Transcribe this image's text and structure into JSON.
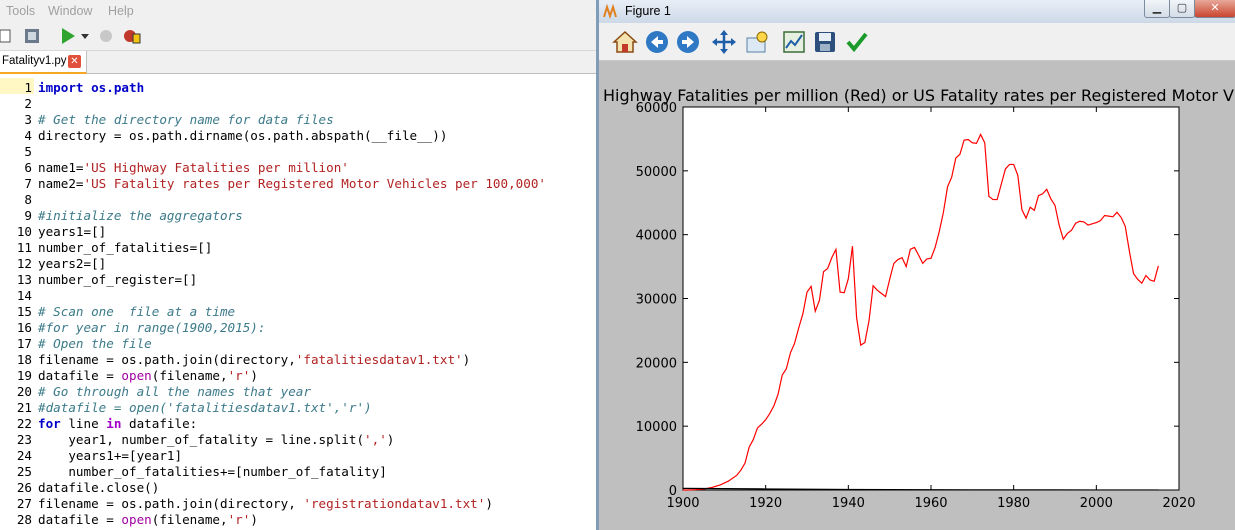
{
  "ide": {
    "menu": [
      "Tools",
      "Window",
      "Help"
    ],
    "tab_label": "Fatalityv1.py",
    "code_lines": [
      [
        {
          "t": "import",
          "c": "kw"
        },
        {
          "t": " "
        },
        {
          "t": "os.path",
          "c": "kw"
        }
      ],
      [],
      [
        {
          "t": "# Get the directory name for data files",
          "c": "cm"
        }
      ],
      [
        {
          "t": "directory = os.path.dirname(os.path.abspath(__file__))"
        }
      ],
      [],
      [
        {
          "t": "name1="
        },
        {
          "t": "'US Highway Fatalities per million'",
          "c": "st"
        }
      ],
      [
        {
          "t": "name2="
        },
        {
          "t": "'US Fatality rates per Registered Motor Vehicles per 100,000'",
          "c": "st"
        }
      ],
      [],
      [
        {
          "t": "#initialize the aggregators",
          "c": "cm"
        }
      ],
      [
        {
          "t": "years1=[]"
        }
      ],
      [
        {
          "t": "number_of_fatalities=[]"
        }
      ],
      [
        {
          "t": "years2=[]"
        }
      ],
      [
        {
          "t": "number_of_register=[]"
        }
      ],
      [],
      [
        {
          "t": "# Scan one  file at a time",
          "c": "cm"
        }
      ],
      [
        {
          "t": "#for year in range(1900,2015):",
          "c": "cm"
        }
      ],
      [
        {
          "t": "# Open the file",
          "c": "cm"
        }
      ],
      [
        {
          "t": "filename = os.path.join(directory,"
        },
        {
          "t": "'fatalitiesdatav1.txt'",
          "c": "st"
        },
        {
          "t": ")"
        }
      ],
      [
        {
          "t": "datafile = "
        },
        {
          "t": "open",
          "c": "bi"
        },
        {
          "t": "(filename,"
        },
        {
          "t": "'r'",
          "c": "st"
        },
        {
          "t": ")"
        }
      ],
      [
        {
          "t": "# Go through all the names that year",
          "c": "cm"
        }
      ],
      [
        {
          "t": "#datafile = open('fatalitiesdatav1.txt','r')",
          "c": "cm"
        }
      ],
      [
        {
          "t": "for",
          "c": "kw"
        },
        {
          "t": " line "
        },
        {
          "t": "in",
          "c": "kw2"
        },
        {
          "t": " datafile:"
        }
      ],
      [
        {
          "t": "    year1, number_of_fatality = line.split("
        },
        {
          "t": "','",
          "c": "st"
        },
        {
          "t": ")"
        }
      ],
      [
        {
          "t": "    years1+=[year1]"
        }
      ],
      [
        {
          "t": "    number_of_fatalities+=[number_of_fatality]"
        }
      ],
      [
        {
          "t": "datafile.close()"
        }
      ],
      [
        {
          "t": "filename = os.path.join(directory, "
        },
        {
          "t": "'registrationdatav1.txt'",
          "c": "st"
        },
        {
          "t": ")"
        }
      ],
      [
        {
          "t": "datafile = "
        },
        {
          "t": "open",
          "c": "bi"
        },
        {
          "t": "(filename,"
        },
        {
          "t": "'r'",
          "c": "st"
        },
        {
          "t": ")"
        }
      ]
    ]
  },
  "figure": {
    "window_title": "Figure 1",
    "toolbar_icons": [
      "home-icon",
      "back-icon",
      "forward-icon",
      "pan-icon",
      "zoom-icon",
      "subplots-icon",
      "save-icon",
      "edit-icon"
    ],
    "colors": {
      "series1": "#ff0000",
      "series2": "#000000",
      "plot_bg": "#ffffff",
      "window_bg": "#bfbfbf"
    }
  },
  "chart_data": {
    "type": "line",
    "title": "Highway Fatalities per million (Red) or US Fatality rates per Registered Motor V",
    "xlim": [
      1900,
      2020
    ],
    "ylim": [
      0,
      60000
    ],
    "xticks": [
      "1900",
      "1920",
      "1940",
      "1960",
      "1980",
      "2000",
      "2020"
    ],
    "yticks": [
      "0",
      "10000",
      "20000",
      "30000",
      "40000",
      "50000",
      "60000"
    ],
    "grid": false,
    "series": [
      {
        "color": "#ff0000",
        "x": [
          1899,
          1901,
          1903,
          1905,
          1907,
          1909,
          1911,
          1913,
          1914,
          1915,
          1916,
          1917,
          1918,
          1919,
          1920,
          1921,
          1922,
          1923,
          1924,
          1925,
          1926,
          1927,
          1928,
          1929,
          1930,
          1931,
          1932,
          1933,
          1934,
          1935,
          1936,
          1937,
          1938,
          1939,
          1940,
          1941,
          1942,
          1943,
          1944,
          1945,
          1946,
          1947,
          1948,
          1949,
          1950,
          1951,
          1952,
          1953,
          1954,
          1955,
          1956,
          1957,
          1958,
          1959,
          1960,
          1961,
          1962,
          1963,
          1964,
          1965,
          1966,
          1967,
          1968,
          1969,
          1970,
          1971,
          1972,
          1973,
          1974,
          1975,
          1976,
          1977,
          1978,
          1979,
          1980,
          1981,
          1982,
          1983,
          1984,
          1985,
          1986,
          1987,
          1988,
          1989,
          1990,
          1991,
          1992,
          1993,
          1994,
          1995,
          1996,
          1997,
          1998,
          1999,
          2000,
          2001,
          2002,
          2003,
          2004,
          2005,
          2006,
          2007,
          2008,
          2009,
          2010,
          2011,
          2012,
          2013,
          2014,
          2015
        ],
        "y": [
          0,
          0,
          50,
          150,
          400,
          800,
          1400,
          2300,
          3100,
          4200,
          6700,
          7900,
          9700,
          10300,
          11000,
          12000,
          13200,
          15000,
          18000,
          19000,
          21500,
          23000,
          25400,
          27600,
          31000,
          31900,
          28000,
          29700,
          34200,
          34700,
          36400,
          37700,
          31000,
          30900,
          33100,
          38200,
          27000,
          22700,
          23100,
          26500,
          32000,
          31300,
          30800,
          30300,
          33000,
          35500,
          36100,
          36400,
          35000,
          37700,
          38000,
          36800,
          35500,
          36200,
          36300,
          38000,
          40500,
          43500,
          47500,
          49000,
          52000,
          52600,
          54800,
          54900,
          54400,
          54300,
          55700,
          54400,
          46000,
          45500,
          45500,
          47900,
          50300,
          51000,
          51000,
          49300,
          43900,
          42600,
          44300,
          43800,
          46100,
          46400,
          47100,
          45600,
          44600,
          41500,
          39300,
          40200,
          40700,
          41800,
          42100,
          42000,
          41500,
          41700,
          41900,
          42200,
          43000,
          42900,
          42800,
          43500,
          42700,
          41300,
          37400,
          33900,
          33000,
          32400,
          33600,
          32900,
          32700,
          35100
        ]
      },
      {
        "color": "#000000",
        "x": [
          1899,
          1905,
          1910,
          1920,
          1930,
          1940,
          1950,
          1960,
          1970,
          1980,
          1990,
          2000,
          2010,
          2015
        ],
        "y": [
          260,
          240,
          210,
          170,
          130,
          90,
          60,
          40,
          30,
          20,
          15,
          10,
          8,
          8
        ]
      }
    ]
  }
}
